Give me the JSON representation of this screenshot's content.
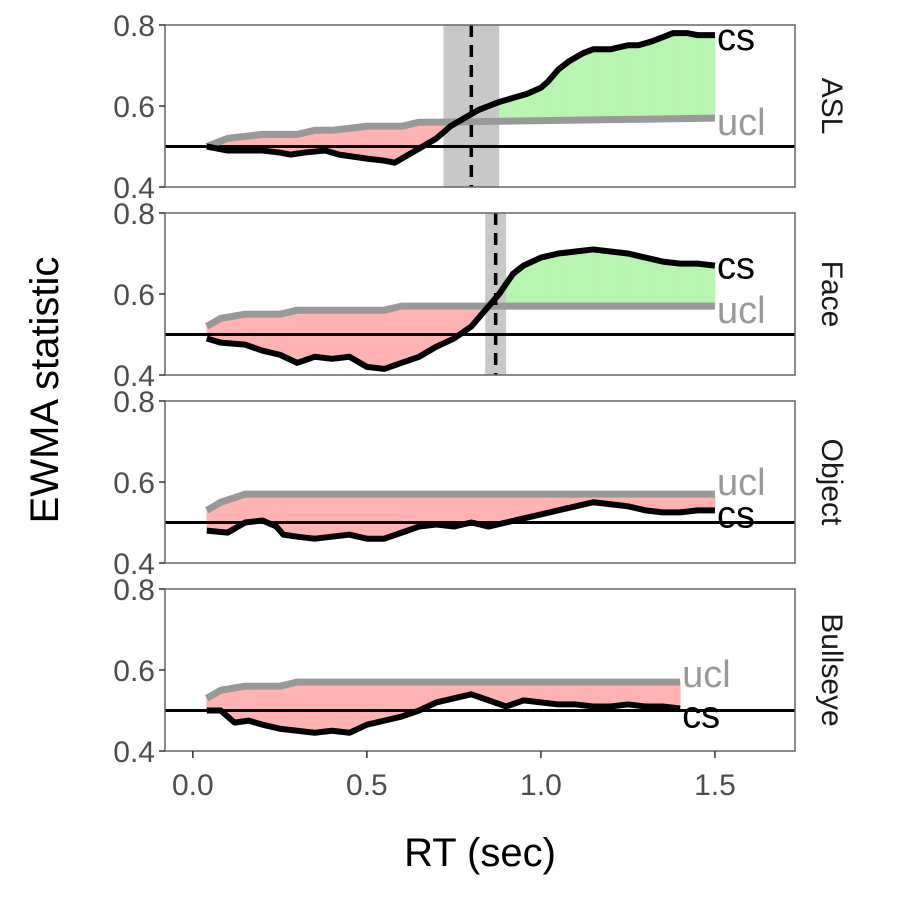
{
  "chart_data": {
    "type": "line",
    "xlabel": "RT (sec)",
    "ylabel": "EWMA statistic",
    "xlim": [
      -0.08,
      1.73
    ],
    "ylim": [
      0.4,
      0.8
    ],
    "x_ticks": [
      "0.0",
      "0.5",
      "1.0",
      "1.5"
    ],
    "y_ticks": [
      "0.4",
      "0.6",
      "0.8"
    ],
    "reference_line": 0.5,
    "colors": {
      "cs": "#000000",
      "ucl": "#999999",
      "below_ucl_fill": "#ffb3b3",
      "above_ucl_fill": "#b8f5b0",
      "ci_band": "#c8c8c8",
      "reference": "#000000"
    },
    "series_labels": {
      "cs": "cs",
      "ucl": "ucl"
    },
    "panels": [
      {
        "strip": "ASL",
        "onset": 0.8,
        "onset_band": [
          0.72,
          0.88
        ],
        "cs_label_y": 0.77,
        "ucl_label_y": 0.56,
        "ucl": [
          [
            0.04,
            0.5
          ],
          [
            0.1,
            0.52
          ],
          [
            0.2,
            0.53
          ],
          [
            0.3,
            0.53
          ],
          [
            0.35,
            0.54
          ],
          [
            0.4,
            0.54
          ],
          [
            0.5,
            0.55
          ],
          [
            0.6,
            0.55
          ],
          [
            0.65,
            0.56
          ],
          [
            0.7,
            0.56
          ],
          [
            1.5,
            0.57
          ]
        ],
        "cs": [
          [
            0.04,
            0.5
          ],
          [
            0.1,
            0.49
          ],
          [
            0.15,
            0.49
          ],
          [
            0.2,
            0.49
          ],
          [
            0.25,
            0.485
          ],
          [
            0.28,
            0.48
          ],
          [
            0.32,
            0.485
          ],
          [
            0.38,
            0.49
          ],
          [
            0.42,
            0.48
          ],
          [
            0.46,
            0.475
          ],
          [
            0.5,
            0.47
          ],
          [
            0.55,
            0.465
          ],
          [
            0.58,
            0.46
          ],
          [
            0.62,
            0.48
          ],
          [
            0.66,
            0.5
          ],
          [
            0.7,
            0.52
          ],
          [
            0.74,
            0.55
          ],
          [
            0.78,
            0.57
          ],
          [
            0.82,
            0.59
          ],
          [
            0.85,
            0.6
          ],
          [
            0.88,
            0.61
          ],
          [
            0.92,
            0.62
          ],
          [
            0.96,
            0.63
          ],
          [
            1.0,
            0.645
          ],
          [
            1.02,
            0.66
          ],
          [
            1.05,
            0.69
          ],
          [
            1.08,
            0.71
          ],
          [
            1.12,
            0.73
          ],
          [
            1.15,
            0.74
          ],
          [
            1.2,
            0.74
          ],
          [
            1.25,
            0.75
          ],
          [
            1.28,
            0.75
          ],
          [
            1.32,
            0.76
          ],
          [
            1.35,
            0.77
          ],
          [
            1.38,
            0.78
          ],
          [
            1.42,
            0.78
          ],
          [
            1.45,
            0.775
          ],
          [
            1.5,
            0.775
          ]
        ]
      },
      {
        "strip": "Face",
        "onset": 0.87,
        "onset_band": [
          0.84,
          0.9
        ],
        "cs_label_y": 0.67,
        "ucl_label_y": 0.56,
        "ucl": [
          [
            0.04,
            0.52
          ],
          [
            0.08,
            0.54
          ],
          [
            0.15,
            0.55
          ],
          [
            0.25,
            0.55
          ],
          [
            0.3,
            0.56
          ],
          [
            0.45,
            0.56
          ],
          [
            0.55,
            0.56
          ],
          [
            0.6,
            0.57
          ],
          [
            0.85,
            0.57
          ],
          [
            1.5,
            0.57
          ]
        ],
        "cs": [
          [
            0.04,
            0.49
          ],
          [
            0.08,
            0.48
          ],
          [
            0.15,
            0.475
          ],
          [
            0.2,
            0.46
          ],
          [
            0.25,
            0.45
          ],
          [
            0.3,
            0.43
          ],
          [
            0.35,
            0.445
          ],
          [
            0.4,
            0.44
          ],
          [
            0.45,
            0.445
          ],
          [
            0.5,
            0.42
          ],
          [
            0.55,
            0.415
          ],
          [
            0.6,
            0.43
          ],
          [
            0.65,
            0.445
          ],
          [
            0.7,
            0.47
          ],
          [
            0.75,
            0.49
          ],
          [
            0.8,
            0.52
          ],
          [
            0.85,
            0.57
          ],
          [
            0.88,
            0.6
          ],
          [
            0.92,
            0.65
          ],
          [
            0.95,
            0.67
          ],
          [
            1.0,
            0.69
          ],
          [
            1.05,
            0.7
          ],
          [
            1.1,
            0.705
          ],
          [
            1.15,
            0.71
          ],
          [
            1.2,
            0.705
          ],
          [
            1.25,
            0.7
          ],
          [
            1.3,
            0.69
          ],
          [
            1.35,
            0.68
          ],
          [
            1.4,
            0.675
          ],
          [
            1.45,
            0.675
          ],
          [
            1.5,
            0.67
          ]
        ]
      },
      {
        "strip": "Object",
        "onset": null,
        "onset_band": null,
        "cs_label_y": 0.52,
        "ucl_label_y": 0.6,
        "ucl": [
          [
            0.04,
            0.53
          ],
          [
            0.08,
            0.55
          ],
          [
            0.15,
            0.57
          ],
          [
            0.3,
            0.57
          ],
          [
            0.5,
            0.57
          ],
          [
            1.0,
            0.57
          ],
          [
            1.5,
            0.57
          ]
        ],
        "cs": [
          [
            0.04,
            0.48
          ],
          [
            0.1,
            0.475
          ],
          [
            0.15,
            0.5
          ],
          [
            0.2,
            0.505
          ],
          [
            0.24,
            0.49
          ],
          [
            0.26,
            0.47
          ],
          [
            0.3,
            0.465
          ],
          [
            0.35,
            0.46
          ],
          [
            0.4,
            0.465
          ],
          [
            0.45,
            0.47
          ],
          [
            0.5,
            0.46
          ],
          [
            0.55,
            0.46
          ],
          [
            0.6,
            0.475
          ],
          [
            0.65,
            0.49
          ],
          [
            0.7,
            0.495
          ],
          [
            0.75,
            0.49
          ],
          [
            0.8,
            0.5
          ],
          [
            0.85,
            0.49
          ],
          [
            0.9,
            0.5
          ],
          [
            0.95,
            0.51
          ],
          [
            1.0,
            0.52
          ],
          [
            1.05,
            0.53
          ],
          [
            1.1,
            0.54
          ],
          [
            1.15,
            0.55
          ],
          [
            1.2,
            0.545
          ],
          [
            1.25,
            0.54
          ],
          [
            1.3,
            0.53
          ],
          [
            1.35,
            0.525
          ],
          [
            1.4,
            0.525
          ],
          [
            1.45,
            0.53
          ],
          [
            1.5,
            0.53
          ]
        ]
      },
      {
        "strip": "Bullseye",
        "onset": null,
        "onset_band": null,
        "cs_label_y": 0.49,
        "ucl_label_y": 0.59,
        "ucl": [
          [
            0.04,
            0.53
          ],
          [
            0.08,
            0.55
          ],
          [
            0.15,
            0.56
          ],
          [
            0.25,
            0.56
          ],
          [
            0.3,
            0.57
          ],
          [
            0.5,
            0.57
          ],
          [
            1.0,
            0.57
          ],
          [
            1.4,
            0.57
          ]
        ],
        "cs": [
          [
            0.04,
            0.5
          ],
          [
            0.08,
            0.5
          ],
          [
            0.12,
            0.47
          ],
          [
            0.16,
            0.475
          ],
          [
            0.2,
            0.465
          ],
          [
            0.25,
            0.455
          ],
          [
            0.3,
            0.45
          ],
          [
            0.35,
            0.445
          ],
          [
            0.4,
            0.45
          ],
          [
            0.45,
            0.445
          ],
          [
            0.5,
            0.465
          ],
          [
            0.55,
            0.475
          ],
          [
            0.6,
            0.485
          ],
          [
            0.65,
            0.5
          ],
          [
            0.7,
            0.52
          ],
          [
            0.75,
            0.53
          ],
          [
            0.8,
            0.54
          ],
          [
            0.85,
            0.525
          ],
          [
            0.9,
            0.51
          ],
          [
            0.95,
            0.525
          ],
          [
            1.0,
            0.52
          ],
          [
            1.05,
            0.515
          ],
          [
            1.1,
            0.515
          ],
          [
            1.15,
            0.51
          ],
          [
            1.2,
            0.51
          ],
          [
            1.25,
            0.515
          ],
          [
            1.3,
            0.51
          ],
          [
            1.35,
            0.51
          ],
          [
            1.4,
            0.505
          ]
        ]
      }
    ]
  }
}
